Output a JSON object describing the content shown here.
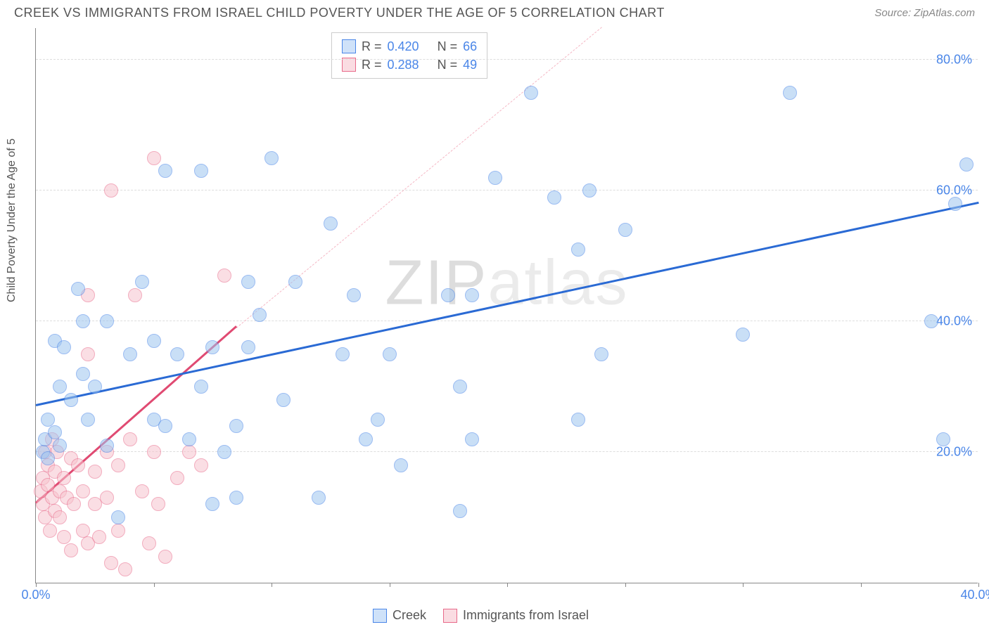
{
  "header": {
    "title": "CREEK VS IMMIGRANTS FROM ISRAEL CHILD POVERTY UNDER THE AGE OF 5 CORRELATION CHART",
    "source_prefix": "Source: ",
    "source_name": "ZipAtlas.com"
  },
  "chart": {
    "type": "scatter",
    "ylabel": "Child Poverty Under the Age of 5",
    "xlim": [
      0,
      40
    ],
    "ylim": [
      0,
      85
    ],
    "xtick_positions": [
      0,
      5,
      10,
      15,
      20,
      25,
      30,
      35,
      40
    ],
    "xtick_labels": {
      "0": "0.0%",
      "40": "40.0%"
    },
    "yticks": [
      20,
      40,
      60,
      80
    ],
    "ytick_labels": [
      "20.0%",
      "40.0%",
      "60.0%",
      "80.0%"
    ],
    "grid_color": "#dddddd",
    "background_color": "#ffffff",
    "axis_color": "#888888",
    "label_fontsize": 16,
    "tick_fontsize": 18,
    "tick_color": "#4a86e8",
    "marker_size": 20,
    "marker_opacity": 0.55
  },
  "series": {
    "creek": {
      "label": "Creek",
      "color_fill": "#9ec5f0",
      "color_stroke": "#4a86e8",
      "r": "0.420",
      "n": "66",
      "trend": {
        "x1": 0,
        "y1": 27,
        "x2": 40,
        "y2": 58,
        "color": "#2a6ad4",
        "width": 3,
        "dash": false
      },
      "points": [
        [
          0.3,
          20
        ],
        [
          0.4,
          22
        ],
        [
          0.5,
          19
        ],
        [
          0.5,
          25
        ],
        [
          0.8,
          23
        ],
        [
          0.8,
          37
        ],
        [
          1.0,
          21
        ],
        [
          1.0,
          30
        ],
        [
          1.2,
          36
        ],
        [
          1.5,
          28
        ],
        [
          1.8,
          45
        ],
        [
          2.0,
          40
        ],
        [
          2.0,
          32
        ],
        [
          2.2,
          25
        ],
        [
          2.5,
          30
        ],
        [
          3.0,
          21
        ],
        [
          3.0,
          40
        ],
        [
          3.5,
          10
        ],
        [
          4.0,
          35
        ],
        [
          4.5,
          46
        ],
        [
          5.0,
          37
        ],
        [
          5.0,
          25
        ],
        [
          5.5,
          24
        ],
        [
          5.5,
          63
        ],
        [
          6.0,
          35
        ],
        [
          6.5,
          22
        ],
        [
          7.0,
          63
        ],
        [
          7.0,
          30
        ],
        [
          7.5,
          36
        ],
        [
          7.5,
          12
        ],
        [
          8.0,
          20
        ],
        [
          8.5,
          24
        ],
        [
          8.5,
          13
        ],
        [
          9.0,
          46
        ],
        [
          9.0,
          36
        ],
        [
          9.5,
          41
        ],
        [
          10.0,
          65
        ],
        [
          10.5,
          28
        ],
        [
          11.0,
          46
        ],
        [
          12.0,
          13
        ],
        [
          12.5,
          55
        ],
        [
          13.0,
          35
        ],
        [
          14.0,
          22
        ],
        [
          14.5,
          25
        ],
        [
          15.0,
          35
        ],
        [
          15.5,
          18
        ],
        [
          17.5,
          44
        ],
        [
          18.0,
          11
        ],
        [
          18.0,
          30
        ],
        [
          18.5,
          22
        ],
        [
          18.5,
          44
        ],
        [
          19.5,
          62
        ],
        [
          21.0,
          75
        ],
        [
          22.0,
          59
        ],
        [
          23.0,
          51
        ],
        [
          23.0,
          25
        ],
        [
          23.5,
          60
        ],
        [
          24.0,
          35
        ],
        [
          25.0,
          54
        ],
        [
          30.0,
          38
        ],
        [
          32.0,
          75
        ],
        [
          38.5,
          22
        ],
        [
          39.5,
          64
        ],
        [
          39.0,
          58
        ],
        [
          38.0,
          40
        ],
        [
          13.5,
          44
        ]
      ]
    },
    "israel": {
      "label": "Immigrants from Israel",
      "color_fill": "#f7c4ce",
      "color_stroke": "#e86a8a",
      "r": "0.288",
      "n": "49",
      "trend": {
        "x1": 0,
        "y1": 12,
        "x2": 8.5,
        "y2": 39,
        "color": "#e04a72",
        "width": 3,
        "dash": false
      },
      "trend_ext": {
        "x1": 8.5,
        "y1": 39,
        "x2": 24,
        "y2": 85,
        "color": "#f5b8c5",
        "width": 1.5,
        "dash": true
      },
      "points": [
        [
          0.2,
          14
        ],
        [
          0.3,
          16
        ],
        [
          0.3,
          12
        ],
        [
          0.4,
          20
        ],
        [
          0.4,
          10
        ],
        [
          0.5,
          18
        ],
        [
          0.5,
          15
        ],
        [
          0.6,
          8
        ],
        [
          0.7,
          13
        ],
        [
          0.7,
          22
        ],
        [
          0.8,
          17
        ],
        [
          0.8,
          11
        ],
        [
          0.9,
          20
        ],
        [
          1.0,
          14
        ],
        [
          1.0,
          10
        ],
        [
          1.2,
          16
        ],
        [
          1.2,
          7
        ],
        [
          1.3,
          13
        ],
        [
          1.5,
          5
        ],
        [
          1.5,
          19
        ],
        [
          1.6,
          12
        ],
        [
          1.8,
          18
        ],
        [
          2.0,
          14
        ],
        [
          2.0,
          8
        ],
        [
          2.2,
          6
        ],
        [
          2.2,
          44
        ],
        [
          2.2,
          35
        ],
        [
          2.5,
          17
        ],
        [
          2.5,
          12
        ],
        [
          2.7,
          7
        ],
        [
          3.0,
          20
        ],
        [
          3.0,
          13
        ],
        [
          3.2,
          3
        ],
        [
          3.2,
          60
        ],
        [
          3.5,
          8
        ],
        [
          3.5,
          18
        ],
        [
          3.8,
          2
        ],
        [
          4.0,
          22
        ],
        [
          4.2,
          44
        ],
        [
          4.5,
          14
        ],
        [
          4.8,
          6
        ],
        [
          5.0,
          20
        ],
        [
          5.2,
          12
        ],
        [
          5.5,
          4
        ],
        [
          6.0,
          16
        ],
        [
          6.5,
          20
        ],
        [
          7.0,
          18
        ],
        [
          8.0,
          47
        ],
        [
          5.0,
          65
        ]
      ]
    }
  },
  "stats_box": {
    "r_label": "R =",
    "n_label": "N ="
  },
  "bottom_legend": {
    "items": [
      "Creek",
      "Immigrants from Israel"
    ]
  },
  "watermark": {
    "part1": "ZIP",
    "part2": "atlas"
  }
}
